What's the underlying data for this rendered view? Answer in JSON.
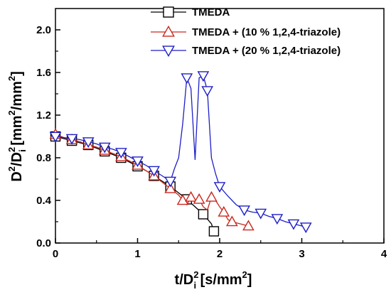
{
  "chart_data": {
    "type": "line",
    "xlabel": {
      "base": "t/D",
      "sub": "i",
      "sup": "2",
      "units": " [s/mm",
      "units_sup": "2",
      "units_end": "]"
    },
    "ylabel": {
      "base": "D",
      "sup1": "2",
      "mid": "/D",
      "sub": "i",
      "sup2": "2",
      "units": " [mm",
      "units_sup1": "2",
      "units_mid": "/mm",
      "units_sup2": "2",
      "units_end": "]"
    },
    "xlim": [
      0,
      4
    ],
    "ylim": [
      0,
      2.2
    ],
    "x_ticks": [
      "0",
      "1",
      "2",
      "3",
      "4"
    ],
    "y_ticks": [
      "0.0",
      "0.4",
      "0.8",
      "1.2",
      "1.6",
      "2.0"
    ],
    "grid": false,
    "legend_position": "top-right",
    "series": [
      {
        "name": "TMEDA",
        "color": "#000000",
        "marker": "square",
        "x": [
          0.0,
          0.1,
          0.2,
          0.3,
          0.4,
          0.5,
          0.6,
          0.7,
          0.8,
          0.9,
          1.0,
          1.1,
          1.2,
          1.3,
          1.4,
          1.5,
          1.6,
          1.7,
          1.8,
          1.9,
          1.93
        ],
        "y": [
          1.0,
          0.98,
          0.96,
          0.94,
          0.92,
          0.89,
          0.86,
          0.83,
          0.8,
          0.76,
          0.72,
          0.68,
          0.63,
          0.58,
          0.53,
          0.47,
          0.41,
          0.34,
          0.27,
          0.18,
          0.11
        ],
        "marker_indices": [
          0,
          2,
          4,
          6,
          8,
          10,
          12,
          14,
          16,
          18,
          20
        ]
      },
      {
        "name": "TMEDA + (10 % 1,2,4-triazole)",
        "color": "#c8281e",
        "marker": "triangle-up",
        "x": [
          0.0,
          0.1,
          0.2,
          0.3,
          0.4,
          0.5,
          0.6,
          0.7,
          0.8,
          0.9,
          1.0,
          1.1,
          1.2,
          1.3,
          1.4,
          1.5,
          1.55,
          1.6,
          1.65,
          1.7,
          1.75,
          1.8,
          1.85,
          1.9,
          1.95,
          2.0,
          2.05,
          2.1,
          2.15,
          2.25,
          2.35
        ],
        "y": [
          1.02,
          0.99,
          0.97,
          0.95,
          0.92,
          0.9,
          0.87,
          0.84,
          0.81,
          0.77,
          0.73,
          0.68,
          0.63,
          0.57,
          0.51,
          0.45,
          0.4,
          0.36,
          0.43,
          0.38,
          0.41,
          0.34,
          0.31,
          0.43,
          0.4,
          0.34,
          0.29,
          0.22,
          0.2,
          0.18,
          0.16
        ],
        "marker_indices": [
          0,
          2,
          4,
          6,
          8,
          10,
          12,
          14,
          16,
          18,
          20,
          23,
          26,
          28,
          30
        ]
      },
      {
        "name": "TMEDA + (20 % 1,2,4-triazole)",
        "color": "#1e1ec8",
        "marker": "triangle-down",
        "x": [
          0.0,
          0.1,
          0.2,
          0.3,
          0.4,
          0.5,
          0.6,
          0.7,
          0.8,
          0.9,
          1.0,
          1.1,
          1.2,
          1.3,
          1.4,
          1.45,
          1.5,
          1.55,
          1.6,
          1.65,
          1.7,
          1.75,
          1.8,
          1.85,
          1.9,
          1.95,
          2.0,
          2.1,
          2.2,
          2.3,
          2.4,
          2.5,
          2.6,
          2.7,
          2.8,
          2.9,
          3.05
        ],
        "y": [
          1.0,
          0.99,
          0.98,
          0.97,
          0.95,
          0.93,
          0.9,
          0.88,
          0.85,
          0.81,
          0.77,
          0.73,
          0.68,
          0.63,
          0.58,
          0.7,
          0.8,
          1.12,
          1.55,
          1.45,
          0.78,
          1.55,
          1.57,
          1.43,
          0.8,
          0.65,
          0.53,
          0.44,
          0.36,
          0.31,
          0.29,
          0.28,
          0.25,
          0.23,
          0.2,
          0.18,
          0.15
        ],
        "marker_indices": [
          0,
          2,
          4,
          6,
          8,
          10,
          12,
          14,
          18,
          22,
          23,
          26,
          29,
          31,
          33,
          35,
          36
        ]
      }
    ]
  }
}
